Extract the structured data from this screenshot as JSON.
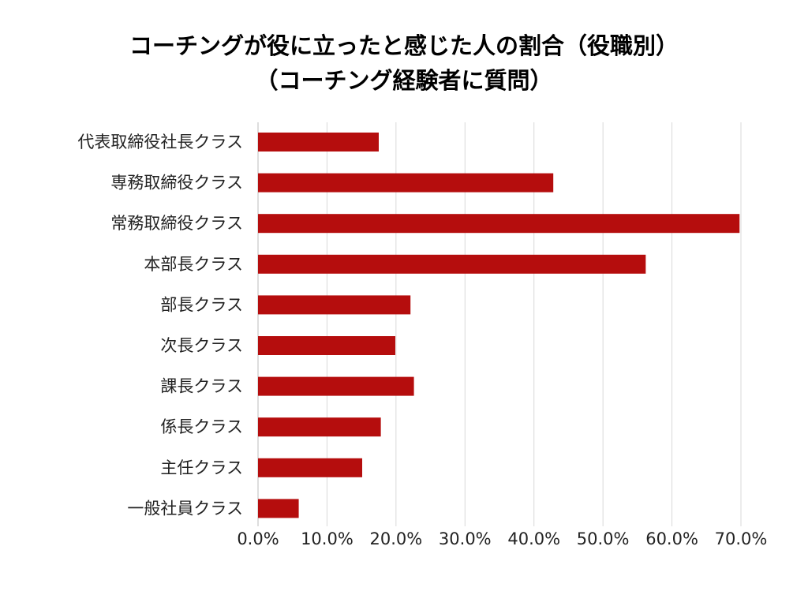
{
  "chart_data": {
    "type": "bar",
    "orientation": "horizontal",
    "title_lines": [
      "コーチングが役に立ったと感じた人の割合（役職別）",
      "（コーチング経験者に質問）"
    ],
    "categories": [
      "代表取締役社長クラス",
      "専務取締役クラス",
      "常務取締役クラス",
      "本部長クラス",
      "部長クラス",
      "次長クラス",
      "課長クラス",
      "係長クラス",
      "主任クラス",
      "一般社員クラス"
    ],
    "values": [
      17.5,
      42.8,
      69.8,
      56.2,
      22.1,
      19.9,
      22.6,
      17.8,
      15.1,
      5.9
    ],
    "x_ticks": [
      "0.0%",
      "10.0%",
      "20.0%",
      "30.0%",
      "40.0%",
      "50.0%",
      "60.0%",
      "70.0%"
    ],
    "xlim": [
      0,
      70
    ],
    "grid": true,
    "legend": "none",
    "bar_color": "#b50d0d",
    "grid_color": "#d9d9d9",
    "xlabel": "",
    "ylabel": ""
  }
}
